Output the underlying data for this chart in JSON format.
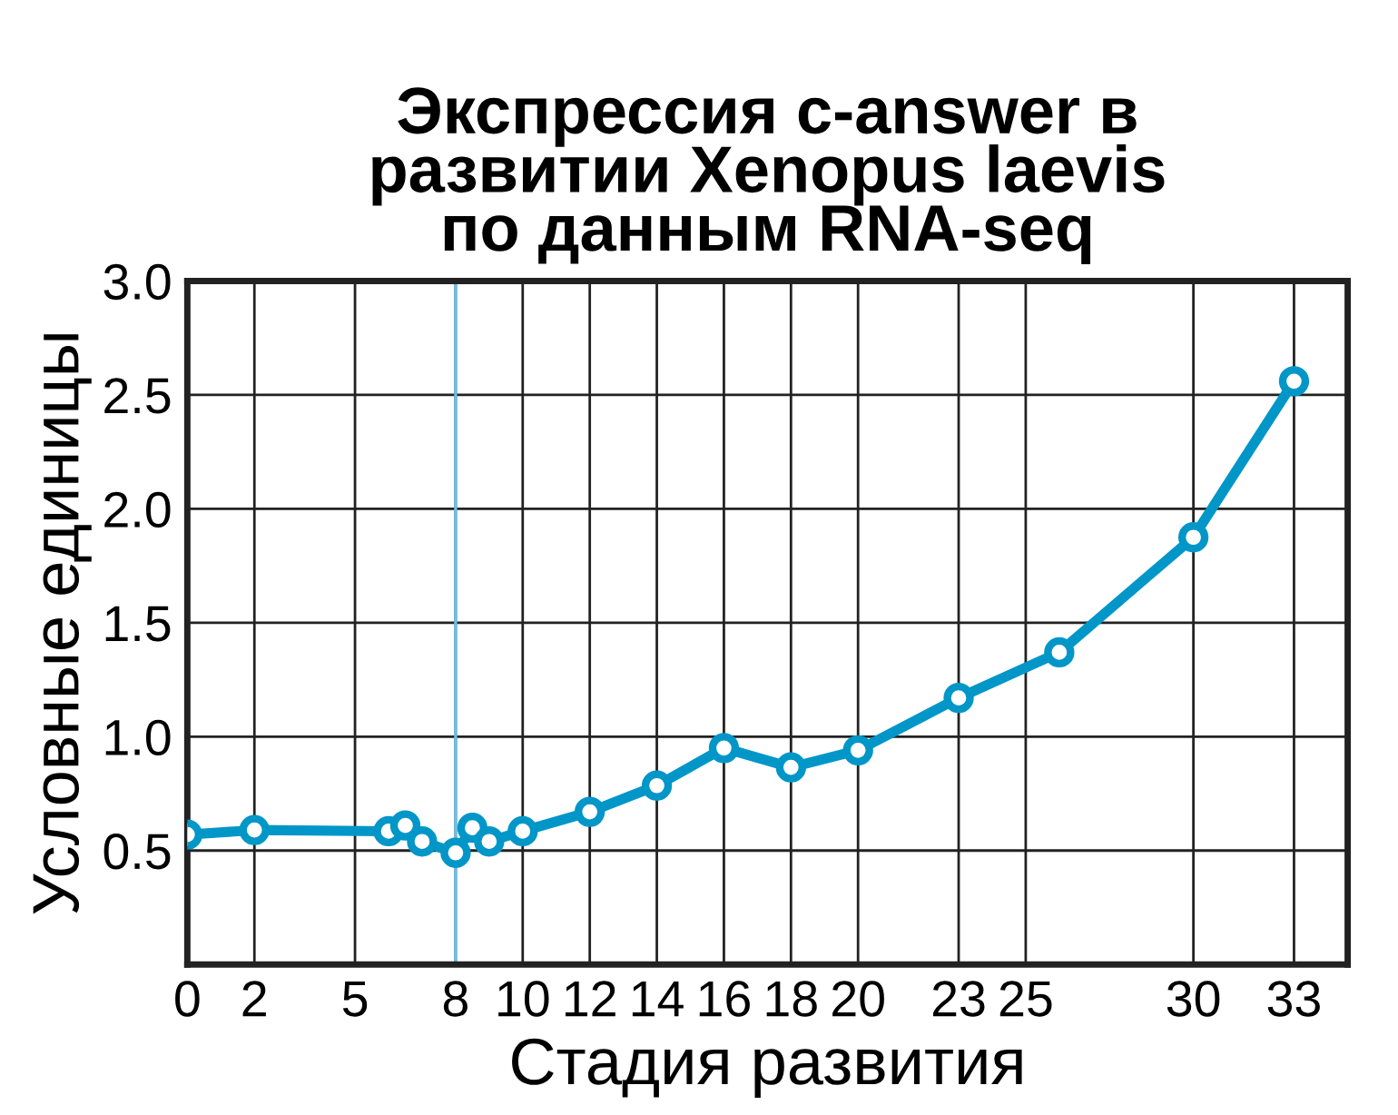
{
  "chart_data": {
    "type": "line",
    "title": "Экспрессия c-answer в\nразвитии Xenopus laevis\nпо данным RNA-seq",
    "xlabel": "Стадия развития",
    "ylabel": "Условные единицы",
    "series": [
      {
        "color": "#0096c8",
        "x": [
          0,
          2,
          6,
          6.5,
          7,
          8,
          8.5,
          9,
          10,
          12,
          14,
          16,
          18,
          20,
          23,
          26,
          30,
          33
        ],
        "values": [
          0.57,
          0.59,
          0.585,
          0.61,
          0.54,
          0.49,
          0.6,
          0.54,
          0.585,
          0.67,
          0.785,
          0.95,
          0.865,
          0.94,
          1.17,
          1.37,
          1.875,
          2.56
        ]
      }
    ],
    "xlim": [
      0,
      34.6
    ],
    "xticks": [
      0,
      2,
      5,
      8,
      10,
      12,
      14,
      16,
      18,
      20,
      23,
      25,
      30,
      33
    ],
    "ylim": [
      0,
      3
    ],
    "yticks": [
      0.5,
      {
        "value": 1,
        "label": "1.0"
      },
      1.5,
      {
        "value": 2,
        "label": "2.0"
      },
      2.5,
      {
        "value": 3,
        "label": "3.0"
      }
    ],
    "ref_lines": [
      {
        "axis": "x",
        "value": 8,
        "color": "#6cc0e5"
      }
    ],
    "grid": true,
    "marker": "circle",
    "line_style": "solid"
  }
}
